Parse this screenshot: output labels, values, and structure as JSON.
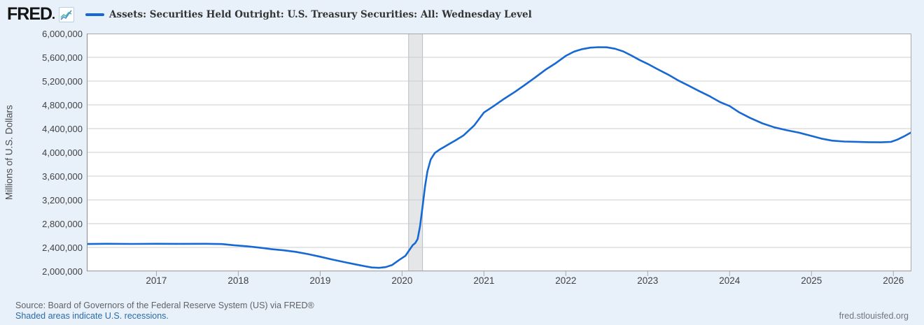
{
  "header": {
    "logo_text": "FRED"
  },
  "chart_data": {
    "type": "line",
    "title": "Assets: Securities Held Outright: U.S. Treasury Securities: All: Wednesday Level",
    "ylabel": "Millions of U.S. Dollars",
    "xlabel": "",
    "y_ticks": [
      "6,000,000",
      "5,600,000",
      "5,200,000",
      "4,800,000",
      "4,400,000",
      "4,000,000",
      "3,600,000",
      "3,200,000",
      "2,800,000",
      "2,400,000",
      "2,000,000"
    ],
    "x_ticks": [
      "2017",
      "2018",
      "2019",
      "2020",
      "2021",
      "2022",
      "2023",
      "2024",
      "2025",
      "2026"
    ],
    "x_range": [
      2016.15,
      2026.22
    ],
    "y_range": [
      2000000,
      6000000
    ],
    "grid": true,
    "legend_position": "top",
    "line_color": "#1668d2",
    "recession_band": {
      "start": 2020.08,
      "end": 2020.25
    },
    "series": [
      {
        "name": "Assets: Securities Held Outright: U.S. Treasury Securities: All: Wednesday Level",
        "points": [
          [
            2016.15,
            2458000
          ],
          [
            2016.4,
            2461000
          ],
          [
            2016.7,
            2459000
          ],
          [
            2017.0,
            2461000
          ],
          [
            2017.3,
            2460000
          ],
          [
            2017.6,
            2461000
          ],
          [
            2017.8,
            2456000
          ],
          [
            2017.95,
            2437000
          ],
          [
            2018.1,
            2420000
          ],
          [
            2018.25,
            2398000
          ],
          [
            2018.4,
            2372000
          ],
          [
            2018.55,
            2352000
          ],
          [
            2018.7,
            2326000
          ],
          [
            2018.85,
            2288000
          ],
          [
            2019.0,
            2243000
          ],
          [
            2019.15,
            2195000
          ],
          [
            2019.3,
            2152000
          ],
          [
            2019.45,
            2110000
          ],
          [
            2019.55,
            2082000
          ],
          [
            2019.63,
            2062000
          ],
          [
            2019.72,
            2056000
          ],
          [
            2019.8,
            2068000
          ],
          [
            2019.88,
            2105000
          ],
          [
            2019.96,
            2185000
          ],
          [
            2020.04,
            2258000
          ],
          [
            2020.1,
            2378000
          ],
          [
            2020.13,
            2438000
          ],
          [
            2020.16,
            2472000
          ],
          [
            2020.19,
            2540000
          ],
          [
            2020.22,
            2760000
          ],
          [
            2020.25,
            3080000
          ],
          [
            2020.28,
            3420000
          ],
          [
            2020.31,
            3680000
          ],
          [
            2020.35,
            3880000
          ],
          [
            2020.4,
            3990000
          ],
          [
            2020.46,
            4048000
          ],
          [
            2020.55,
            4120000
          ],
          [
            2020.65,
            4200000
          ],
          [
            2020.75,
            4285000
          ],
          [
            2020.88,
            4452000
          ],
          [
            2021.0,
            4672000
          ],
          [
            2021.12,
            4780000
          ],
          [
            2021.25,
            4905000
          ],
          [
            2021.38,
            5020000
          ],
          [
            2021.5,
            5135000
          ],
          [
            2021.62,
            5255000
          ],
          [
            2021.75,
            5390000
          ],
          [
            2021.88,
            5505000
          ],
          [
            2022.0,
            5625000
          ],
          [
            2022.1,
            5695000
          ],
          [
            2022.2,
            5738000
          ],
          [
            2022.3,
            5762000
          ],
          [
            2022.4,
            5771000
          ],
          [
            2022.5,
            5768000
          ],
          [
            2022.6,
            5745000
          ],
          [
            2022.7,
            5700000
          ],
          [
            2022.8,
            5630000
          ],
          [
            2022.9,
            5555000
          ],
          [
            2023.0,
            5490000
          ],
          [
            2023.12,
            5400000
          ],
          [
            2023.25,
            5308000
          ],
          [
            2023.38,
            5205000
          ],
          [
            2023.5,
            5122000
          ],
          [
            2023.62,
            5038000
          ],
          [
            2023.75,
            4950000
          ],
          [
            2023.88,
            4848000
          ],
          [
            2024.0,
            4780000
          ],
          [
            2024.12,
            4672000
          ],
          [
            2024.25,
            4580000
          ],
          [
            2024.4,
            4488000
          ],
          [
            2024.55,
            4420000
          ],
          [
            2024.7,
            4372000
          ],
          [
            2024.85,
            4330000
          ],
          [
            2025.0,
            4276000
          ],
          [
            2025.12,
            4232000
          ],
          [
            2025.25,
            4198000
          ],
          [
            2025.4,
            4182000
          ],
          [
            2025.55,
            4178000
          ],
          [
            2025.7,
            4172000
          ],
          [
            2025.85,
            4170000
          ],
          [
            2025.97,
            4176000
          ],
          [
            2026.05,
            4215000
          ],
          [
            2026.13,
            4270000
          ],
          [
            2026.21,
            4330000
          ]
        ]
      }
    ]
  },
  "footer": {
    "source": "Source: Board of Governors of the Federal Reserve System (US) via FRED®",
    "recession_note": "Shaded areas indicate U.S. recessions.",
    "site_link": "fred.stlouisfed.org"
  },
  "colors": {
    "page_bg": "#e8f1fa",
    "plot_bg": "#ffffff",
    "gridline": "#cccccc",
    "plot_border": "#a8a8a8",
    "axis_left_border": "#8a8a8a",
    "recession_fill": "#e4e6e8",
    "recession_edge": "#b9bdc0",
    "icon_blue": "#4a90d2",
    "icon_teal": "#53b8a2"
  }
}
